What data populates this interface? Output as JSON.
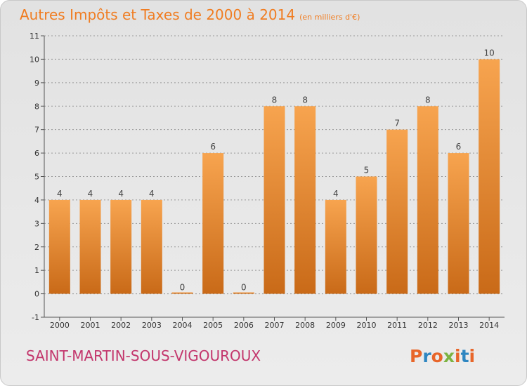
{
  "header": {
    "title": "Autres Impôts et Taxes de 2000 à 2014",
    "unit": "(en milliers d'€)"
  },
  "footer": {
    "place": "SAINT-MARTIN-SOUS-VIGOUROUX",
    "logo_text": "Proxiti",
    "logo_colors": [
      "#e8662a",
      "#2e86c1",
      "#e8662a",
      "#7cb342",
      "#e8662a",
      "#2e86c1",
      "#e8662a"
    ]
  },
  "colors": {
    "bar_top": "#f7a44f",
    "bar_bottom": "#c96a18",
    "grid": "#999999",
    "axis": "#555555"
  },
  "chart_data": {
    "type": "bar",
    "title": "Autres Impôts et Taxes de 2000 à 2014",
    "subtitle": "(en milliers d'€)",
    "xlabel": "",
    "ylabel": "",
    "categories": [
      "2000",
      "2001",
      "2002",
      "2003",
      "2004",
      "2005",
      "2006",
      "2007",
      "2008",
      "2009",
      "2010",
      "2011",
      "2012",
      "2013",
      "2014"
    ],
    "values": [
      4,
      4,
      4,
      4,
      0,
      6,
      0,
      8,
      8,
      4,
      5,
      7,
      8,
      6,
      10
    ],
    "y_ticks": [
      "-1",
      "0",
      "1",
      "2",
      "3",
      "4",
      "5",
      "6",
      "7",
      "8",
      "9",
      "10",
      "11"
    ],
    "ylim": [
      -1,
      11
    ],
    "grid": true,
    "legend": "none"
  }
}
